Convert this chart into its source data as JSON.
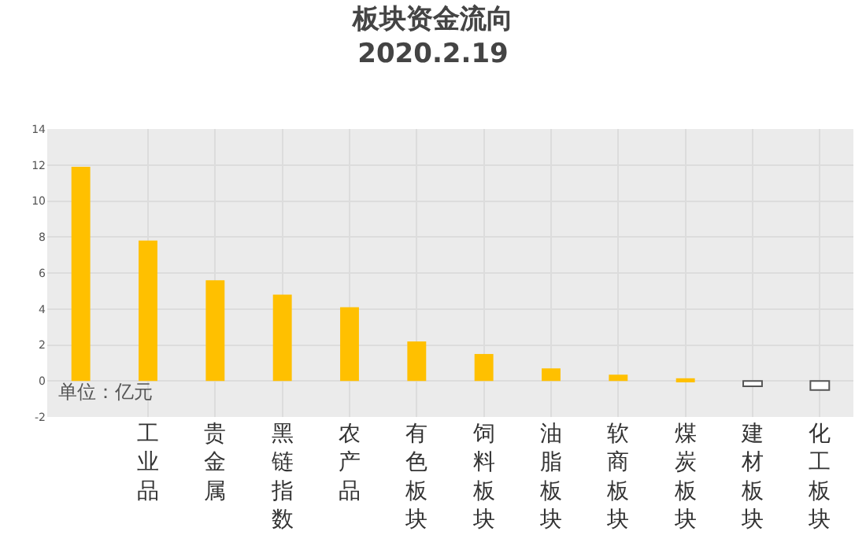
{
  "chart_data": {
    "type": "bar",
    "title": "板块资金流向",
    "subtitle": "2020.2.19",
    "categories": [
      null,
      "工业品",
      "贵金属",
      "黑链指数",
      "农产品",
      "有色板块",
      "饲料板块",
      "油脂板块",
      "软商板块",
      "煤炭板块",
      "建材板块",
      "化工板块"
    ],
    "values": [
      11.9,
      7.8,
      5.6,
      4.8,
      4.1,
      2.2,
      1.5,
      0.7,
      0.35,
      0.15,
      -0.3,
      -0.5
    ],
    "colors": [
      "#ffc000",
      "#ffc000",
      "#ffc000",
      "#ffc000",
      "#ffc000",
      "#ffc000",
      "#ffc000",
      "#ffc000",
      "#ffc000",
      "#ffc000",
      "#ffffff",
      "#ffffff"
    ],
    "ylim": [
      -2,
      14
    ],
    "yticks": [
      -2,
      0,
      2,
      4,
      6,
      8,
      10,
      12,
      14
    ],
    "grid": true,
    "legend": false,
    "annotations": [
      "单位：亿元"
    ]
  }
}
